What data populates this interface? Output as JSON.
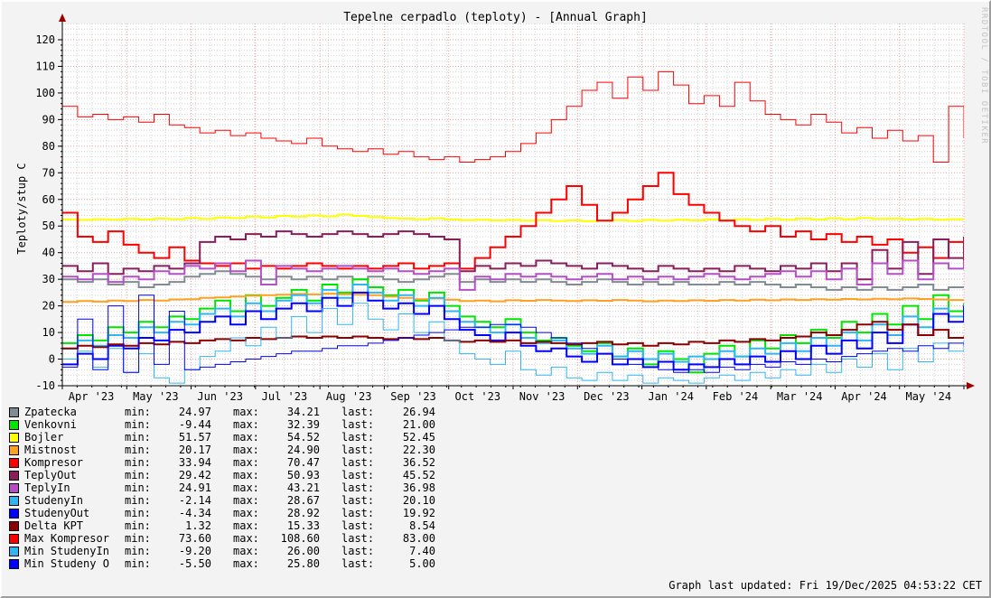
{
  "title": "Tepelne cerpadlo (teploty) - [Annual Graph]",
  "y_axis_label": "Teploty/stup C",
  "watermark": "RRDTOOL / TOBI OETIKER",
  "footer": "Graph last updated: Fri 19/Dec/2025 04:53:22 CET",
  "colors": {
    "page_bg": "#f3f3f3",
    "plot_bg": "#ffffff",
    "axis": "#000000",
    "arrow": "#990000",
    "grid_major": "#f19e9e",
    "grid_minor": "#d4d4d4",
    "watermark_text": "#c3c3c3"
  },
  "chart_data": {
    "type": "line",
    "title": "Tepelne cerpadlo (teploty) - [Annual Graph]",
    "xlabel": "",
    "ylabel": "Teploty/stup C",
    "ylim": [
      -10,
      120
    ],
    "y_ticks": [
      -10,
      0,
      10,
      20,
      30,
      40,
      50,
      60,
      70,
      80,
      90,
      100,
      110,
      120
    ],
    "x_ticks": [
      "Apr '23",
      "May '23",
      "Jun '23",
      "Jul '23",
      "Aug '23",
      "Sep '23",
      "Oct '23",
      "Nov '23",
      "Dec '23",
      "Jan '24",
      "Feb '24",
      "Mar '24",
      "Apr '24",
      "May '24"
    ],
    "grid": true,
    "legend_position": "bottom",
    "x_note": "60 samples evenly spaced Apr 2023 - end May 2024, step-after interpolation",
    "series": [
      {
        "name": "Zpatecka",
        "color": "#828a92",
        "width": 2,
        "values": [
          30,
          29,
          30,
          28,
          29,
          27,
          28,
          29,
          31,
          32,
          33,
          32,
          31,
          30,
          31,
          30,
          31,
          30,
          31,
          30,
          31,
          30,
          29,
          30,
          31,
          32,
          29,
          30,
          29,
          30,
          29,
          30,
          29,
          28,
          29,
          30,
          29,
          28,
          29,
          28,
          29,
          28,
          28,
          29,
          28,
          29,
          28,
          27,
          28,
          27,
          26,
          27,
          26,
          27,
          26,
          27,
          28,
          26,
          27,
          27
        ]
      },
      {
        "name": "Venkovni",
        "color": "#00e500",
        "width": 2,
        "values": [
          6,
          9,
          7,
          12,
          10,
          14,
          12,
          16,
          15,
          19,
          22,
          18,
          24,
          20,
          23,
          26,
          22,
          28,
          25,
          30,
          27,
          24,
          26,
          22,
          25,
          20,
          16,
          14,
          12,
          15,
          10,
          7,
          8,
          5,
          3,
          6,
          1,
          4,
          -2,
          3,
          0,
          -5,
          2,
          5,
          1,
          7,
          4,
          9,
          6,
          11,
          8,
          14,
          10,
          17,
          13,
          20,
          15,
          24,
          18,
          21
        ]
      },
      {
        "name": "Bojler",
        "color": "#ffff00",
        "width": 2,
        "values": [
          52.5,
          52.3,
          52.6,
          52.4,
          52.7,
          52.5,
          52.8,
          52.6,
          53,
          52.7,
          53.2,
          53,
          53.5,
          53.2,
          53.8,
          53.5,
          54,
          53.6,
          54.3,
          53.8,
          53.4,
          53,
          52.8,
          52.6,
          52.9,
          52.5,
          52.2,
          52.4,
          52.1,
          52.3,
          52,
          52.2,
          51.9,
          52.1,
          51.8,
          52,
          52.2,
          51.9,
          52.3,
          52,
          52.4,
          52.1,
          52.5,
          52.2,
          52.6,
          52.3,
          52.7,
          52.4,
          52.8,
          52.5,
          52.9,
          52.6,
          53,
          52.7,
          52.8,
          52.5,
          52.7,
          52.4,
          52.6,
          52.5
        ]
      },
      {
        "name": "Mistnost",
        "color": "#ffa020",
        "width": 2,
        "values": [
          21.5,
          21.8,
          21.6,
          22,
          21.8,
          22.2,
          22,
          22.4,
          22.5,
          23,
          23.2,
          23.5,
          23.8,
          24,
          24.2,
          24.5,
          24.3,
          24.6,
          24.4,
          24.2,
          24,
          23.5,
          23,
          22.5,
          22.8,
          22.3,
          21.8,
          22,
          21.7,
          22.1,
          21.9,
          22.2,
          22,
          21.8,
          22.1,
          21.9,
          22.2,
          22,
          21.7,
          22,
          21.8,
          22.1,
          21.9,
          22.2,
          22,
          22.3,
          22.1,
          22.4,
          22.2,
          22.5,
          22.3,
          22.6,
          22.4,
          22.7,
          22.5,
          22.8,
          22.6,
          22.4,
          22.2,
          22.3
        ]
      },
      {
        "name": "Kompresor",
        "color": "#ff0000",
        "width": 2,
        "values": [
          55,
          46,
          44,
          48,
          43,
          40,
          38,
          42,
          37,
          36,
          35,
          36,
          34,
          35,
          34,
          35,
          36,
          35,
          34,
          35,
          34,
          35,
          36,
          34,
          35,
          36,
          34,
          38,
          42,
          46,
          50,
          55,
          60,
          65,
          58,
          52,
          55,
          60,
          65,
          70,
          62,
          58,
          55,
          52,
          50,
          48,
          50,
          46,
          48,
          45,
          47,
          44,
          46,
          43,
          45,
          40,
          42,
          38,
          44,
          37
        ]
      },
      {
        "name": "TeplyOut",
        "color": "#891e5b",
        "width": 2,
        "values": [
          35,
          33,
          36,
          32,
          34,
          33,
          35,
          34,
          36,
          44,
          46,
          45,
          47,
          46,
          48,
          47,
          46,
          47,
          48,
          47,
          46,
          47,
          48,
          47,
          46,
          45,
          33,
          35,
          34,
          36,
          35,
          37,
          36,
          35,
          34,
          36,
          35,
          34,
          33,
          35,
          34,
          33,
          34,
          33,
          35,
          34,
          33,
          35,
          34,
          36,
          33,
          36,
          30,
          41,
          34,
          44,
          32,
          45,
          38,
          46
        ]
      },
      {
        "name": "TeplyIn",
        "color": "#b44fc8",
        "width": 2,
        "values": [
          31,
          30,
          32,
          29,
          31,
          30,
          33,
          32,
          35,
          34,
          36,
          33,
          37,
          28,
          35,
          34,
          33,
          34,
          35,
          34,
          33,
          34,
          33,
          32,
          33,
          34,
          26,
          31,
          30,
          32,
          31,
          32,
          31,
          30,
          31,
          32,
          30,
          31,
          30,
          31,
          30,
          31,
          32,
          31,
          30,
          31,
          32,
          33,
          31,
          33,
          30,
          34,
          28,
          36,
          32,
          37,
          30,
          36,
          34,
          37
        ]
      },
      {
        "name": "StudenyIn",
        "color": "#2fb6f2",
        "width": 2,
        "values": [
          4,
          7,
          5,
          9,
          8,
          12,
          10,
          14,
          13,
          17,
          19,
          16,
          21,
          18,
          22,
          24,
          21,
          26,
          23,
          28,
          25,
          22,
          24,
          20,
          23,
          18,
          14,
          12,
          10,
          13,
          8,
          6,
          7,
          4,
          2,
          5,
          1,
          3,
          0,
          2,
          -1,
          1,
          0,
          3,
          1,
          4,
          2,
          6,
          3,
          8,
          5,
          10,
          7,
          13,
          9,
          16,
          12,
          19,
          16,
          20
        ]
      },
      {
        "name": "StudenyOut",
        "color": "#0000ff",
        "width": 2,
        "values": [
          -2,
          2,
          0,
          5,
          4,
          8,
          7,
          11,
          10,
          14,
          16,
          13,
          18,
          15,
          19,
          21,
          18,
          23,
          20,
          25,
          22,
          19,
          21,
          17,
          20,
          15,
          11,
          9,
          7,
          10,
          5,
          3,
          4,
          1,
          -1,
          2,
          -2,
          0,
          -3,
          -1,
          -4,
          -2,
          -3,
          0,
          -2,
          1,
          -1,
          3,
          0,
          5,
          2,
          7,
          4,
          10,
          6,
          13,
          9,
          17,
          14,
          20
        ]
      },
      {
        "name": "Delta KPT",
        "color": "#8b0000",
        "width": 2,
        "values": [
          4,
          5,
          4.5,
          5.5,
          5,
          6,
          5.5,
          6.5,
          6,
          7,
          7.5,
          7,
          8,
          7.5,
          8,
          8.5,
          8,
          8.5,
          8,
          8.5,
          8,
          7.5,
          8,
          7.5,
          8,
          7,
          6.5,
          7,
          6.5,
          7,
          6,
          6.5,
          6,
          5.5,
          6,
          6.5,
          5.5,
          6,
          5,
          6,
          5.5,
          6.5,
          6,
          7,
          6.5,
          7.5,
          7,
          8,
          8.5,
          10,
          9,
          11,
          13,
          14,
          11,
          13,
          9,
          11,
          8,
          8.5
        ]
      },
      {
        "name": "Max Kompresor",
        "color": "#ff0000",
        "width": 1,
        "values": [
          95,
          91,
          92,
          90,
          91,
          89,
          92,
          88,
          87,
          85,
          86,
          84,
          85,
          83,
          82,
          81,
          83,
          80,
          79,
          78,
          79,
          77,
          78,
          76,
          75,
          76,
          74,
          75,
          76,
          78,
          81,
          85,
          90,
          95,
          101,
          104,
          98,
          106,
          101,
          108,
          103,
          96,
          99,
          95,
          104,
          97,
          92,
          90,
          88,
          92,
          89,
          85,
          87,
          83,
          86,
          82,
          84,
          74,
          95,
          83
        ]
      },
      {
        "name": "Min StudenyIn",
        "color": "#2fb6f2",
        "width": 1,
        "values": [
          0,
          3,
          -3,
          4,
          -5,
          2,
          -7,
          -9,
          -4,
          1,
          3,
          8,
          5,
          12,
          8,
          16,
          10,
          19,
          13,
          21,
          15,
          11,
          17,
          10,
          14,
          7,
          2,
          0,
          -2,
          3,
          -4,
          -6,
          -3,
          -7,
          -8,
          -5,
          -8,
          -6,
          -9,
          -7,
          -8,
          -9,
          -7,
          -6,
          -8,
          -5,
          -7,
          -4,
          -6,
          -2,
          -5,
          0,
          -3,
          2,
          -4,
          4,
          -1,
          6,
          3,
          7
        ]
      },
      {
        "name": "Min Studeny O",
        "color": "#0000ff",
        "width": 1,
        "values": [
          -3,
          15,
          -4,
          20,
          -5,
          24,
          -2,
          18,
          -4,
          -3,
          -2,
          -1,
          0,
          1,
          2,
          3,
          3,
          4,
          5,
          5,
          6,
          7,
          8,
          9,
          10,
          11,
          12,
          12,
          13,
          13,
          12,
          10,
          8,
          6,
          4,
          2,
          0,
          -2,
          -3,
          -4,
          -5,
          -4,
          -5,
          -3,
          -4,
          -2,
          -3,
          -1,
          -2,
          0,
          -1,
          1,
          2,
          3,
          4,
          3,
          5,
          4,
          6,
          5
        ]
      }
    ]
  },
  "legend": {
    "min_label": "min:",
    "max_label": "max:",
    "last_label": "last:",
    "rows": [
      {
        "name": "Zpatecka",
        "color": "#828a92",
        "min": "24.97",
        "max": "34.21",
        "last": "26.94"
      },
      {
        "name": "Venkovni",
        "color": "#00e500",
        "min": "-9.44",
        "max": "32.39",
        "last": "21.00"
      },
      {
        "name": "Bojler",
        "color": "#ffff00",
        "min": "51.57",
        "max": "54.52",
        "last": "52.45"
      },
      {
        "name": "Mistnost",
        "color": "#ffa020",
        "min": "20.17",
        "max": "24.90",
        "last": "22.30"
      },
      {
        "name": "Kompresor",
        "color": "#ff0000",
        "min": "33.94",
        "max": "70.47",
        "last": "36.52"
      },
      {
        "name": "TeplyOut",
        "color": "#891e5b",
        "min": "29.42",
        "max": "50.93",
        "last": "45.52"
      },
      {
        "name": "TeplyIn",
        "color": "#b44fc8",
        "min": "24.91",
        "max": "43.21",
        "last": "36.98"
      },
      {
        "name": "StudenyIn",
        "color": "#2fb6f2",
        "min": "-2.14",
        "max": "28.67",
        "last": "20.10"
      },
      {
        "name": "StudenyOut",
        "color": "#0000ff",
        "min": "-4.34",
        "max": "28.92",
        "last": "19.92"
      },
      {
        "name": "Delta KPT",
        "color": "#8b0000",
        "min": "1.32",
        "max": "15.33",
        "last": "8.54"
      },
      {
        "name": "Max Kompresor",
        "color": "#ff0000",
        "min": "73.60",
        "max": "108.60",
        "last": "83.00"
      },
      {
        "name": "Min StudenyIn",
        "color": "#2fb6f2",
        "min": "-9.20",
        "max": "26.00",
        "last": "7.40"
      },
      {
        "name": "Min Studeny O",
        "color": "#0000ff",
        "min": "-5.50",
        "max": "25.80",
        "last": "5.00"
      }
    ]
  }
}
